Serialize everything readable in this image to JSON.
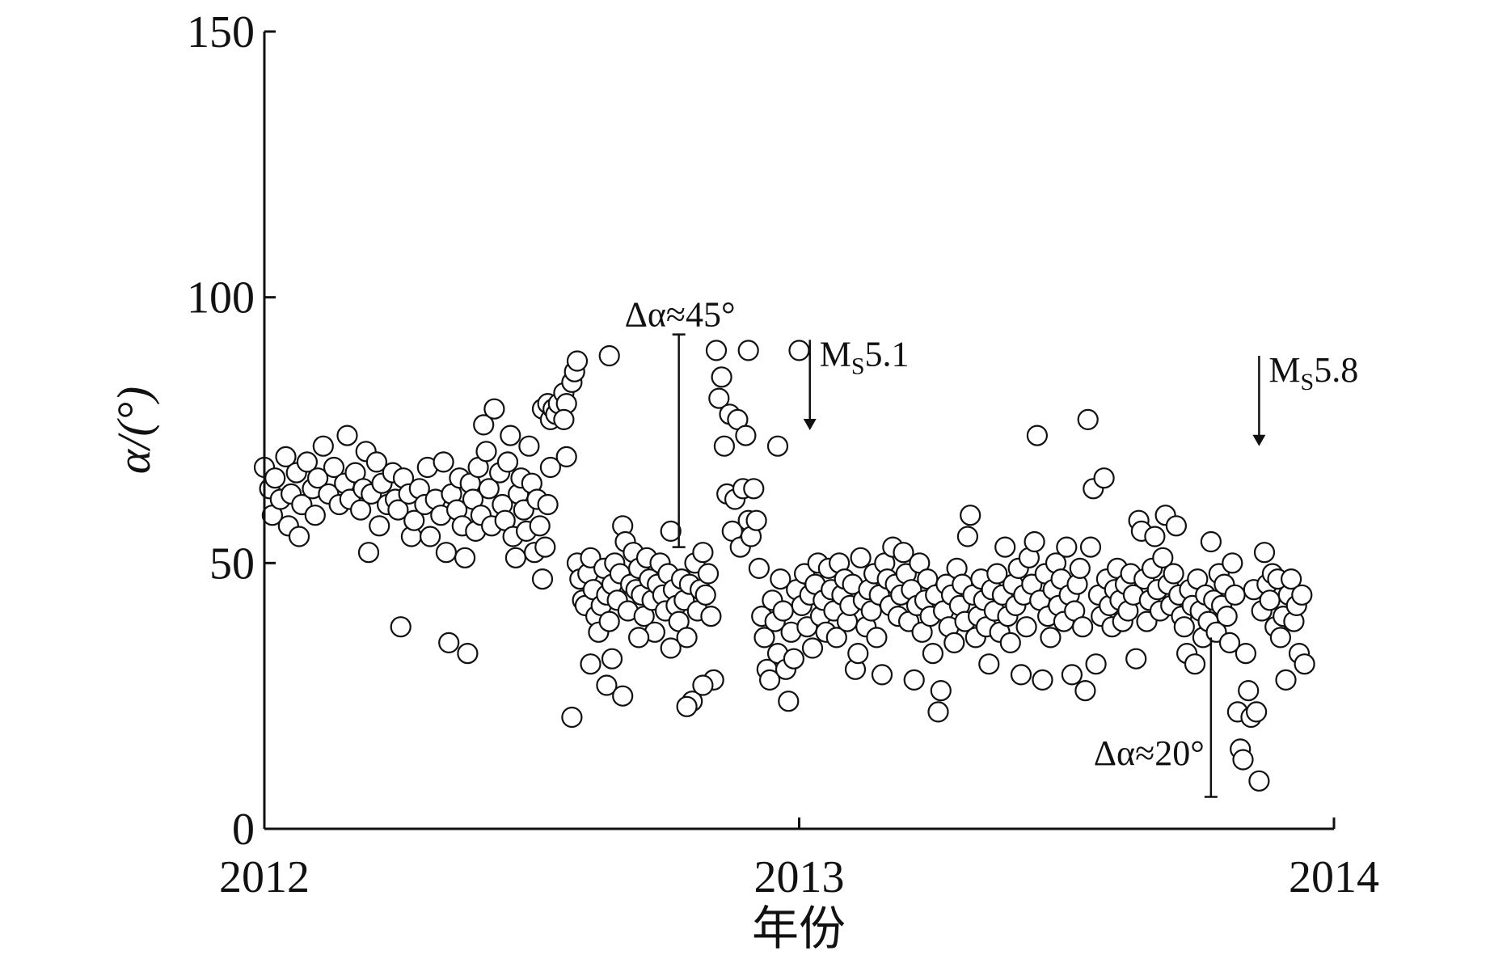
{
  "chart_data": {
    "type": "scatter",
    "title": "",
    "xlabel": "年份",
    "ylabel": "α/(°)",
    "xlim": [
      2012.0,
      2014.0
    ],
    "ylim": [
      0,
      150
    ],
    "x_ticks": [
      {
        "value": 2012,
        "label": "2012"
      },
      {
        "value": 2013,
        "label": "2013"
      },
      {
        "value": 2014,
        "label": "2014"
      }
    ],
    "y_ticks": [
      {
        "value": 0,
        "label": "0"
      },
      {
        "value": 50,
        "label": "50"
      },
      {
        "value": 100,
        "label": "100"
      },
      {
        "value": 150,
        "label": "150"
      }
    ],
    "marker": {
      "shape": "circle",
      "fill": "#ffffff",
      "stroke": "#111111"
    },
    "grid": false,
    "legend": "none",
    "points": [
      [
        2012.0,
        68.0
      ],
      [
        2012.01,
        64.0
      ],
      [
        2012.015,
        59.0
      ],
      [
        2012.02,
        66.0
      ],
      [
        2012.03,
        62.0
      ],
      [
        2012.04,
        70.0
      ],
      [
        2012.045,
        57.0
      ],
      [
        2012.05,
        63.0
      ],
      [
        2012.06,
        67.0
      ],
      [
        2012.065,
        55.0
      ],
      [
        2012.07,
        61.0
      ],
      [
        2012.08,
        69.0
      ],
      [
        2012.09,
        64.0
      ],
      [
        2012.095,
        59.0
      ],
      [
        2012.1,
        66.0
      ],
      [
        2012.11,
        72.0
      ],
      [
        2012.12,
        63.0
      ],
      [
        2012.13,
        68.0
      ],
      [
        2012.14,
        61.0
      ],
      [
        2012.15,
        65.0
      ],
      [
        2012.155,
        74.0
      ],
      [
        2012.16,
        62.0
      ],
      [
        2012.17,
        67.0
      ],
      [
        2012.18,
        60.0
      ],
      [
        2012.185,
        64.0
      ],
      [
        2012.19,
        71.0
      ],
      [
        2012.195,
        52.0
      ],
      [
        2012.2,
        63.0
      ],
      [
        2012.21,
        69.0
      ],
      [
        2012.215,
        57.0
      ],
      [
        2012.22,
        65.0
      ],
      [
        2012.23,
        61.0
      ],
      [
        2012.24,
        67.0
      ],
      [
        2012.245,
        62.0
      ],
      [
        2012.25,
        60.0
      ],
      [
        2012.255,
        38.0
      ],
      [
        2012.26,
        66.0
      ],
      [
        2012.27,
        63.0
      ],
      [
        2012.275,
        55.0
      ],
      [
        2012.28,
        58.0
      ],
      [
        2012.29,
        64.0
      ],
      [
        2012.3,
        61.0
      ],
      [
        2012.305,
        68.0
      ],
      [
        2012.31,
        55.0
      ],
      [
        2012.32,
        62.0
      ],
      [
        2012.33,
        59.0
      ],
      [
        2012.335,
        69.0
      ],
      [
        2012.34,
        52.0
      ],
      [
        2012.345,
        35.0
      ],
      [
        2012.35,
        63.0
      ],
      [
        2012.36,
        60.0
      ],
      [
        2012.365,
        66.0
      ],
      [
        2012.37,
        57.0
      ],
      [
        2012.375,
        51.0
      ],
      [
        2012.38,
        33.0
      ],
      [
        2012.385,
        65.0
      ],
      [
        2012.39,
        62.0
      ],
      [
        2012.395,
        56.0
      ],
      [
        2012.4,
        68.0
      ],
      [
        2012.405,
        59.0
      ],
      [
        2012.41,
        76.0
      ],
      [
        2012.415,
        71.0
      ],
      [
        2012.42,
        64.0
      ],
      [
        2012.425,
        57.0
      ],
      [
        2012.43,
        79.0
      ],
      [
        2012.44,
        67.0
      ],
      [
        2012.445,
        61.0
      ],
      [
        2012.45,
        58.0
      ],
      [
        2012.455,
        69.0
      ],
      [
        2012.46,
        74.0
      ],
      [
        2012.465,
        55.0
      ],
      [
        2012.47,
        51.0
      ],
      [
        2012.475,
        63.0
      ],
      [
        2012.48,
        66.0
      ],
      [
        2012.485,
        60.0
      ],
      [
        2012.49,
        56.0
      ],
      [
        2012.495,
        72.0
      ],
      [
        2012.5,
        65.0
      ],
      [
        2012.505,
        52.0
      ],
      [
        2012.51,
        62.0
      ],
      [
        2012.515,
        57.0
      ],
      [
        2012.52,
        47.0
      ],
      [
        2012.525,
        53.0
      ],
      [
        2012.53,
        61.0
      ],
      [
        2012.535,
        68.0
      ],
      [
        2012.52,
        79.0
      ],
      [
        2012.53,
        80.0
      ],
      [
        2012.535,
        77.0
      ],
      [
        2012.54,
        79.0
      ],
      [
        2012.545,
        78.0
      ],
      [
        2012.55,
        80.0
      ],
      [
        2012.56,
        82.0
      ],
      [
        2012.565,
        80.0
      ],
      [
        2012.575,
        84.0
      ],
      [
        2012.58,
        86.0
      ],
      [
        2012.585,
        88.0
      ],
      [
        2012.56,
        77.0
      ],
      [
        2012.565,
        70.0
      ],
      [
        2012.575,
        21.0
      ],
      [
        2012.585,
        50.0
      ],
      [
        2012.59,
        47.0
      ],
      [
        2012.595,
        43.0
      ],
      [
        2012.6,
        42.0
      ],
      [
        2012.605,
        48.0
      ],
      [
        2012.61,
        51.0
      ],
      [
        2012.615,
        45.0
      ],
      [
        2012.62,
        40.0
      ],
      [
        2012.625,
        37.0
      ],
      [
        2012.63,
        42.0
      ],
      [
        2012.635,
        49.0
      ],
      [
        2012.64,
        44.0
      ],
      [
        2012.645,
        39.0
      ],
      [
        2012.65,
        46.0
      ],
      [
        2012.655,
        50.0
      ],
      [
        2012.66,
        43.0
      ],
      [
        2012.665,
        48.0
      ],
      [
        2012.67,
        57.0
      ],
      [
        2012.675,
        54.0
      ],
      [
        2012.68,
        41.0
      ],
      [
        2012.685,
        46.0
      ],
      [
        2012.69,
        52.0
      ],
      [
        2012.695,
        45.0
      ],
      [
        2012.7,
        49.0
      ],
      [
        2012.705,
        44.0
      ],
      [
        2012.71,
        40.0
      ],
      [
        2012.715,
        51.0
      ],
      [
        2012.72,
        47.0
      ],
      [
        2012.725,
        43.0
      ],
      [
        2012.73,
        37.0
      ],
      [
        2012.735,
        46.0
      ],
      [
        2012.74,
        50.0
      ],
      [
        2012.745,
        44.0
      ],
      [
        2012.75,
        41.0
      ],
      [
        2012.755,
        48.0
      ],
      [
        2012.76,
        34.0
      ],
      [
        2012.765,
        45.0
      ],
      [
        2012.77,
        42.0
      ],
      [
        2012.775,
        39.0
      ],
      [
        2012.78,
        47.0
      ],
      [
        2012.785,
        43.0
      ],
      [
        2012.79,
        36.0
      ],
      [
        2012.795,
        46.0
      ],
      [
        2012.8,
        24.0
      ],
      [
        2012.805,
        50.0
      ],
      [
        2012.81,
        41.0
      ],
      [
        2012.815,
        45.0
      ],
      [
        2012.82,
        52.0
      ],
      [
        2012.825,
        44.0
      ],
      [
        2012.83,
        48.0
      ],
      [
        2012.835,
        40.0
      ],
      [
        2012.84,
        28.0
      ],
      [
        2012.645,
        89.0
      ],
      [
        2012.64,
        27.0
      ],
      [
        2012.65,
        32.0
      ],
      [
        2012.61,
        31.0
      ],
      [
        2012.67,
        25.0
      ],
      [
        2012.7,
        36.0
      ],
      [
        2012.76,
        56.0
      ],
      [
        2012.79,
        23.0
      ],
      [
        2012.82,
        27.0
      ],
      [
        2012.845,
        90.0
      ],
      [
        2012.85,
        81.0
      ],
      [
        2012.855,
        85.0
      ],
      [
        2012.86,
        72.0
      ],
      [
        2012.865,
        63.0
      ],
      [
        2012.87,
        78.0
      ],
      [
        2012.875,
        56.0
      ],
      [
        2012.88,
        62.0
      ],
      [
        2012.885,
        77.0
      ],
      [
        2012.89,
        53.0
      ],
      [
        2012.895,
        64.0
      ],
      [
        2012.9,
        74.0
      ],
      [
        2012.905,
        58.0
      ],
      [
        2012.91,
        55.0
      ],
      [
        2012.915,
        64.0
      ],
      [
        2012.92,
        58.0
      ],
      [
        2012.925,
        49.0
      ],
      [
        2012.93,
        40.0
      ],
      [
        2012.935,
        36.0
      ],
      [
        2012.94,
        30.0
      ],
      [
        2012.945,
        28.0
      ],
      [
        2012.95,
        43.0
      ],
      [
        2012.955,
        39.0
      ],
      [
        2012.96,
        33.0
      ],
      [
        2012.965,
        47.0
      ],
      [
        2012.97,
        41.0
      ],
      [
        2012.975,
        30.0
      ],
      [
        2012.98,
        24.0
      ],
      [
        2012.985,
        37.0
      ],
      [
        2012.99,
        32.0
      ],
      [
        2012.995,
        45.0
      ],
      [
        2012.905,
        90.0
      ],
      [
        2012.96,
        72.0
      ],
      [
        2013.0,
        90.0
      ],
      [
        2013.005,
        42.0
      ],
      [
        2013.01,
        48.0
      ],
      [
        2013.015,
        38.0
      ],
      [
        2013.02,
        44.0
      ],
      [
        2013.025,
        34.0
      ],
      [
        2013.03,
        46.0
      ],
      [
        2013.035,
        50.0
      ],
      [
        2013.04,
        40.0
      ],
      [
        2013.045,
        43.0
      ],
      [
        2013.05,
        37.0
      ],
      [
        2013.055,
        49.0
      ],
      [
        2013.06,
        45.0
      ],
      [
        2013.065,
        41.0
      ],
      [
        2013.07,
        36.0
      ],
      [
        2013.075,
        50.0
      ],
      [
        2013.08,
        44.0
      ],
      [
        2013.085,
        47.0
      ],
      [
        2013.09,
        39.0
      ],
      [
        2013.095,
        42.0
      ],
      [
        2013.1,
        46.0
      ],
      [
        2013.105,
        30.0
      ],
      [
        2013.11,
        33.0
      ],
      [
        2013.115,
        51.0
      ],
      [
        2013.12,
        43.0
      ],
      [
        2013.125,
        38.0
      ],
      [
        2013.13,
        45.0
      ],
      [
        2013.135,
        41.0
      ],
      [
        2013.14,
        48.0
      ],
      [
        2013.145,
        36.0
      ],
      [
        2013.15,
        44.0
      ],
      [
        2013.155,
        29.0
      ],
      [
        2013.16,
        50.0
      ],
      [
        2013.165,
        47.0
      ],
      [
        2013.17,
        42.0
      ],
      [
        2013.175,
        53.0
      ],
      [
        2013.18,
        46.0
      ],
      [
        2013.185,
        40.0
      ],
      [
        2013.19,
        44.0
      ],
      [
        2013.195,
        52.0
      ],
      [
        2013.2,
        48.0
      ],
      [
        2013.205,
        39.0
      ],
      [
        2013.21,
        45.0
      ],
      [
        2013.215,
        28.0
      ],
      [
        2013.22,
        42.0
      ],
      [
        2013.225,
        50.0
      ],
      [
        2013.23,
        37.0
      ],
      [
        2013.235,
        43.0
      ],
      [
        2013.24,
        47.0
      ],
      [
        2013.245,
        40.0
      ],
      [
        2013.25,
        33.0
      ],
      [
        2013.255,
        44.0
      ],
      [
        2013.26,
        22.0
      ],
      [
        2013.265,
        26.0
      ],
      [
        2013.27,
        41.0
      ],
      [
        2013.275,
        46.0
      ],
      [
        2013.28,
        38.0
      ],
      [
        2013.285,
        44.0
      ],
      [
        2013.29,
        35.0
      ],
      [
        2013.295,
        49.0
      ],
      [
        2013.3,
        42.0
      ],
      [
        2013.305,
        46.0
      ],
      [
        2013.31,
        39.0
      ],
      [
        2013.315,
        55.0
      ],
      [
        2013.32,
        59.0
      ],
      [
        2013.325,
        44.0
      ],
      [
        2013.33,
        36.0
      ],
      [
        2013.335,
        40.0
      ],
      [
        2013.34,
        47.0
      ],
      [
        2013.345,
        43.0
      ],
      [
        2013.35,
        38.0
      ],
      [
        2013.355,
        31.0
      ],
      [
        2013.36,
        45.0
      ],
      [
        2013.365,
        41.0
      ],
      [
        2013.37,
        48.0
      ],
      [
        2013.375,
        37.0
      ],
      [
        2013.38,
        44.0
      ],
      [
        2013.385,
        53.0
      ],
      [
        2013.39,
        40.0
      ],
      [
        2013.395,
        35.0
      ],
      [
        2013.4,
        46.0
      ],
      [
        2013.405,
        42.0
      ],
      [
        2013.41,
        49.0
      ],
      [
        2013.415,
        29.0
      ],
      [
        2013.42,
        44.0
      ],
      [
        2013.425,
        38.0
      ],
      [
        2013.43,
        51.0
      ],
      [
        2013.435,
        46.0
      ],
      [
        2013.44,
        54.0
      ],
      [
        2013.445,
        74.0
      ],
      [
        2013.45,
        43.0
      ],
      [
        2013.455,
        28.0
      ],
      [
        2013.46,
        48.0
      ],
      [
        2013.465,
        40.0
      ],
      [
        2013.47,
        36.0
      ],
      [
        2013.475,
        45.0
      ],
      [
        2013.48,
        50.0
      ],
      [
        2013.485,
        42.0
      ],
      [
        2013.49,
        47.0
      ],
      [
        2013.495,
        39.0
      ],
      [
        2013.5,
        53.0
      ],
      [
        2013.505,
        44.0
      ],
      [
        2013.51,
        29.0
      ],
      [
        2013.515,
        41.0
      ],
      [
        2013.52,
        46.0
      ],
      [
        2013.525,
        49.0
      ],
      [
        2013.53,
        38.0
      ],
      [
        2013.535,
        26.0
      ],
      [
        2013.54,
        77.0
      ],
      [
        2013.545,
        53.0
      ],
      [
        2013.55,
        64.0
      ],
      [
        2013.555,
        31.0
      ],
      [
        2013.56,
        44.0
      ],
      [
        2013.565,
        40.0
      ],
      [
        2013.57,
        66.0
      ],
      [
        2013.575,
        47.0
      ],
      [
        2013.58,
        42.0
      ],
      [
        2013.585,
        38.0
      ],
      [
        2013.59,
        45.0
      ],
      [
        2013.595,
        49.0
      ],
      [
        2013.6,
        43.0
      ],
      [
        2013.605,
        39.0
      ],
      [
        2013.61,
        46.0
      ],
      [
        2013.615,
        41.0
      ],
      [
        2013.62,
        48.0
      ],
      [
        2013.625,
        44.0
      ],
      [
        2013.63,
        32.0
      ],
      [
        2013.635,
        58.0
      ],
      [
        2013.64,
        56.0
      ],
      [
        2013.645,
        47.0
      ],
      [
        2013.65,
        39.0
      ],
      [
        2013.655,
        43.0
      ],
      [
        2013.66,
        49.0
      ],
      [
        2013.665,
        55.0
      ],
      [
        2013.67,
        45.0
      ],
      [
        2013.675,
        41.0
      ],
      [
        2013.68,
        51.0
      ],
      [
        2013.685,
        59.0
      ],
      [
        2013.69,
        46.0
      ],
      [
        2013.695,
        42.0
      ],
      [
        2013.7,
        48.0
      ],
      [
        2013.705,
        57.0
      ],
      [
        2013.71,
        44.0
      ],
      [
        2013.715,
        40.0
      ],
      [
        2013.72,
        38.0
      ],
      [
        2013.725,
        33.0
      ],
      [
        2013.73,
        45.0
      ],
      [
        2013.735,
        42.0
      ],
      [
        2013.74,
        31.0
      ],
      [
        2013.745,
        47.0
      ],
      [
        2013.75,
        41.0
      ],
      [
        2013.755,
        36.0
      ],
      [
        2013.76,
        44.0
      ],
      [
        2013.765,
        39.0
      ],
      [
        2013.77,
        54.0
      ],
      [
        2013.775,
        43.0
      ],
      [
        2013.78,
        37.0
      ],
      [
        2013.785,
        48.0
      ],
      [
        2013.79,
        42.0
      ],
      [
        2013.795,
        46.0
      ],
      [
        2013.8,
        40.0
      ],
      [
        2013.805,
        35.0
      ],
      [
        2013.81,
        50.0
      ],
      [
        2013.815,
        44.0
      ],
      [
        2013.82,
        22.0
      ],
      [
        2013.825,
        15.0
      ],
      [
        2013.83,
        13.0
      ],
      [
        2013.835,
        33.0
      ],
      [
        2013.84,
        26.0
      ],
      [
        2013.845,
        21.0
      ],
      [
        2013.85,
        45.0
      ],
      [
        2013.855,
        22.0
      ],
      [
        2013.86,
        9.0
      ],
      [
        2013.865,
        41.0
      ],
      [
        2013.87,
        52.0
      ],
      [
        2013.875,
        46.0
      ],
      [
        2013.88,
        43.0
      ],
      [
        2013.885,
        48.0
      ],
      [
        2013.89,
        38.0
      ],
      [
        2013.895,
        47.0
      ],
      [
        2013.9,
        36.0
      ],
      [
        2013.905,
        40.0
      ],
      [
        2013.91,
        28.0
      ],
      [
        2013.915,
        44.0
      ],
      [
        2013.92,
        47.0
      ],
      [
        2013.925,
        39.0
      ],
      [
        2013.93,
        42.0
      ],
      [
        2013.935,
        33.0
      ],
      [
        2013.94,
        44.0
      ],
      [
        2013.945,
        31.0
      ]
    ],
    "annotations": [
      {
        "text": "Δα≈45°",
        "x": 2012.775,
        "y_from": 53,
        "y_to": 93
      },
      {
        "text": "Δα≈20°",
        "x": 2013.77,
        "y_from": 6,
        "y_to": 36
      },
      {
        "text_main": "M",
        "text_sub": "S",
        "text_value": "5.1",
        "x": 2013.02,
        "y_from": 92,
        "y_to": 75
      },
      {
        "text_main": "M",
        "text_sub": "S",
        "text_value": "5.8",
        "x": 2013.86,
        "y_from": 89,
        "y_to": 72
      }
    ]
  }
}
